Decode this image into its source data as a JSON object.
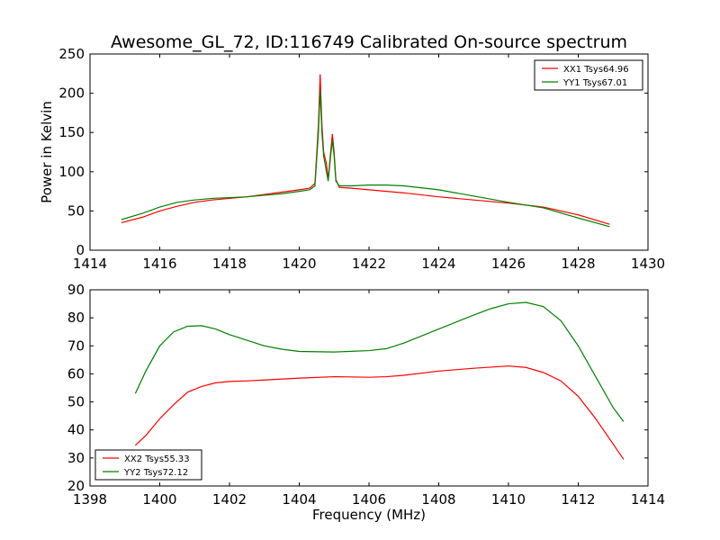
{
  "figure": {
    "title": "Awesome_GL_72, ID:116749 Calibrated On-source spectrum"
  },
  "chart_data": [
    {
      "type": "line",
      "title": "Awesome_GL_72, ID:116749 Calibrated On-source spectrum",
      "xlabel": "",
      "ylabel": "Power in Kelvin",
      "xlim": [
        1414,
        1430
      ],
      "ylim": [
        0,
        250
      ],
      "xticks": [
        1414,
        1416,
        1418,
        1420,
        1422,
        1424,
        1426,
        1428,
        1430
      ],
      "yticks": [
        0,
        50,
        100,
        150,
        200,
        250
      ],
      "grid": false,
      "legend_position": "top-right",
      "series": [
        {
          "name": "XX1 Tsys64.96",
          "color": "#ff0000",
          "points": [
            [
              1414.9,
              35
            ],
            [
              1415.5,
              42
            ],
            [
              1416.0,
              50
            ],
            [
              1416.5,
              56
            ],
            [
              1417.0,
              61
            ],
            [
              1417.5,
              64
            ],
            [
              1418.0,
              66
            ],
            [
              1418.5,
              68
            ],
            [
              1419.0,
              71
            ],
            [
              1419.5,
              74
            ],
            [
              1420.0,
              77
            ],
            [
              1420.3,
              79
            ],
            [
              1420.45,
              85
            ],
            [
              1420.55,
              160
            ],
            [
              1420.6,
              224
            ],
            [
              1420.65,
              160
            ],
            [
              1420.7,
              125
            ],
            [
              1420.78,
              110
            ],
            [
              1420.83,
              90
            ],
            [
              1420.9,
              125
            ],
            [
              1420.95,
              148
            ],
            [
              1421.0,
              125
            ],
            [
              1421.05,
              90
            ],
            [
              1421.15,
              80
            ],
            [
              1421.5,
              79
            ],
            [
              1422.0,
              77
            ],
            [
              1423.0,
              73
            ],
            [
              1424.0,
              68
            ],
            [
              1425.0,
              64
            ],
            [
              1426.0,
              60
            ],
            [
              1427.0,
              55
            ],
            [
              1428.0,
              45
            ],
            [
              1428.9,
              33
            ]
          ]
        },
        {
          "name": "YY1 Tsys67.01",
          "color": "#008000",
          "points": [
            [
              1414.9,
              39
            ],
            [
              1415.5,
              47
            ],
            [
              1416.0,
              55
            ],
            [
              1416.5,
              61
            ],
            [
              1417.0,
              64
            ],
            [
              1417.5,
              66
            ],
            [
              1418.0,
              67
            ],
            [
              1418.5,
              68
            ],
            [
              1419.0,
              70
            ],
            [
              1419.5,
              72
            ],
            [
              1420.0,
              75
            ],
            [
              1420.3,
              77
            ],
            [
              1420.45,
              82
            ],
            [
              1420.55,
              150
            ],
            [
              1420.6,
              205
            ],
            [
              1420.65,
              150
            ],
            [
              1420.7,
              120
            ],
            [
              1420.78,
              100
            ],
            [
              1420.83,
              88
            ],
            [
              1420.9,
              120
            ],
            [
              1420.95,
              140
            ],
            [
              1421.0,
              120
            ],
            [
              1421.05,
              88
            ],
            [
              1421.15,
              82
            ],
            [
              1421.5,
              82
            ],
            [
              1422.0,
              83
            ],
            [
              1422.5,
              83
            ],
            [
              1423.0,
              82
            ],
            [
              1424.0,
              77
            ],
            [
              1425.0,
              69
            ],
            [
              1426.0,
              61
            ],
            [
              1427.0,
              54
            ],
            [
              1428.0,
              41
            ],
            [
              1428.9,
              30
            ]
          ]
        }
      ]
    },
    {
      "type": "line",
      "title": "",
      "xlabel": "Frequency (MHz)",
      "ylabel": "",
      "xlim": [
        1398,
        1414
      ],
      "ylim": [
        20,
        90
      ],
      "xticks": [
        1398,
        1400,
        1402,
        1404,
        1406,
        1408,
        1410,
        1412,
        1414
      ],
      "yticks": [
        20,
        30,
        40,
        50,
        60,
        70,
        80,
        90
      ],
      "grid": false,
      "legend_position": "bottom-left",
      "series": [
        {
          "name": "XX2 Tsys55.33",
          "color": "#ff0000",
          "points": [
            [
              1399.3,
              34.5
            ],
            [
              1399.6,
              38
            ],
            [
              1400.0,
              44
            ],
            [
              1400.4,
              49
            ],
            [
              1400.8,
              53.5
            ],
            [
              1401.2,
              55.5
            ],
            [
              1401.6,
              56.8
            ],
            [
              1402.0,
              57.3
            ],
            [
              1402.5,
              57.5
            ],
            [
              1403.0,
              57.8
            ],
            [
              1404.0,
              58.5
            ],
            [
              1405.0,
              59
            ],
            [
              1406.0,
              58.8
            ],
            [
              1406.5,
              59
            ],
            [
              1407.0,
              59.5
            ],
            [
              1408.0,
              61
            ],
            [
              1409.0,
              62
            ],
            [
              1410.0,
              62.8
            ],
            [
              1410.5,
              62.3
            ],
            [
              1411.0,
              60.5
            ],
            [
              1411.5,
              57.5
            ],
            [
              1412.0,
              52
            ],
            [
              1412.5,
              44
            ],
            [
              1413.0,
              35
            ],
            [
              1413.3,
              29.5
            ]
          ]
        },
        {
          "name": "YY2 Tsys72.12",
          "color": "#008000",
          "points": [
            [
              1399.3,
              53
            ],
            [
              1399.6,
              61
            ],
            [
              1400.0,
              70
            ],
            [
              1400.4,
              75
            ],
            [
              1400.8,
              77
            ],
            [
              1401.2,
              77.2
            ],
            [
              1401.6,
              76
            ],
            [
              1402.0,
              74
            ],
            [
              1402.5,
              72
            ],
            [
              1403.0,
              70
            ],
            [
              1403.5,
              68.8
            ],
            [
              1404.0,
              68
            ],
            [
              1405.0,
              67.8
            ],
            [
              1406.0,
              68.3
            ],
            [
              1406.5,
              69
            ],
            [
              1407.0,
              71
            ],
            [
              1408.0,
              76
            ],
            [
              1409.0,
              81
            ],
            [
              1409.5,
              83.3
            ],
            [
              1410.0,
              85
            ],
            [
              1410.5,
              85.5
            ],
            [
              1411.0,
              84
            ],
            [
              1411.5,
              79
            ],
            [
              1412.0,
              70
            ],
            [
              1412.5,
              59
            ],
            [
              1413.0,
              48
            ],
            [
              1413.3,
              43
            ]
          ]
        }
      ]
    }
  ]
}
